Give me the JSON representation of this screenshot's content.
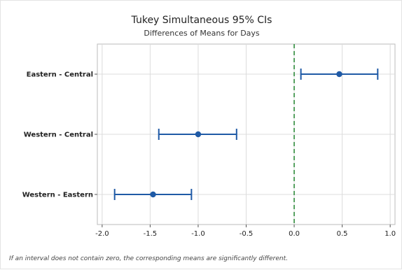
{
  "chart_data": {
    "type": "scatter",
    "title": "Tukey Simultaneous 95% CIs",
    "subtitle": "Differences of Means for Days",
    "categories": [
      "Eastern - Central",
      "Western - Central",
      "Western - Eastern"
    ],
    "estimates": [
      0.47,
      -1.0,
      -1.47
    ],
    "lower": [
      0.07,
      -1.41,
      -1.87
    ],
    "upper": [
      0.87,
      -0.6,
      -1.07
    ],
    "xlim": [
      -2.05,
      1.05
    ],
    "xticks": [
      -2.0,
      -1.5,
      -1.0,
      -0.5,
      0.0,
      0.5,
      1.0
    ],
    "xtick_labels": [
      "-2.0",
      "-1.5",
      "-1.0",
      "-0.5",
      "0.0",
      "0.5",
      "1.0"
    ],
    "reference_line": 0,
    "grid": true,
    "colors": {
      "interval": "#1f5aa6",
      "reference": "#2e8b3c",
      "grid": "#dcdcdc",
      "frame": "#bbbbbb"
    }
  },
  "footnote": "If an interval does not contain zero, the corresponding means are significantly different."
}
